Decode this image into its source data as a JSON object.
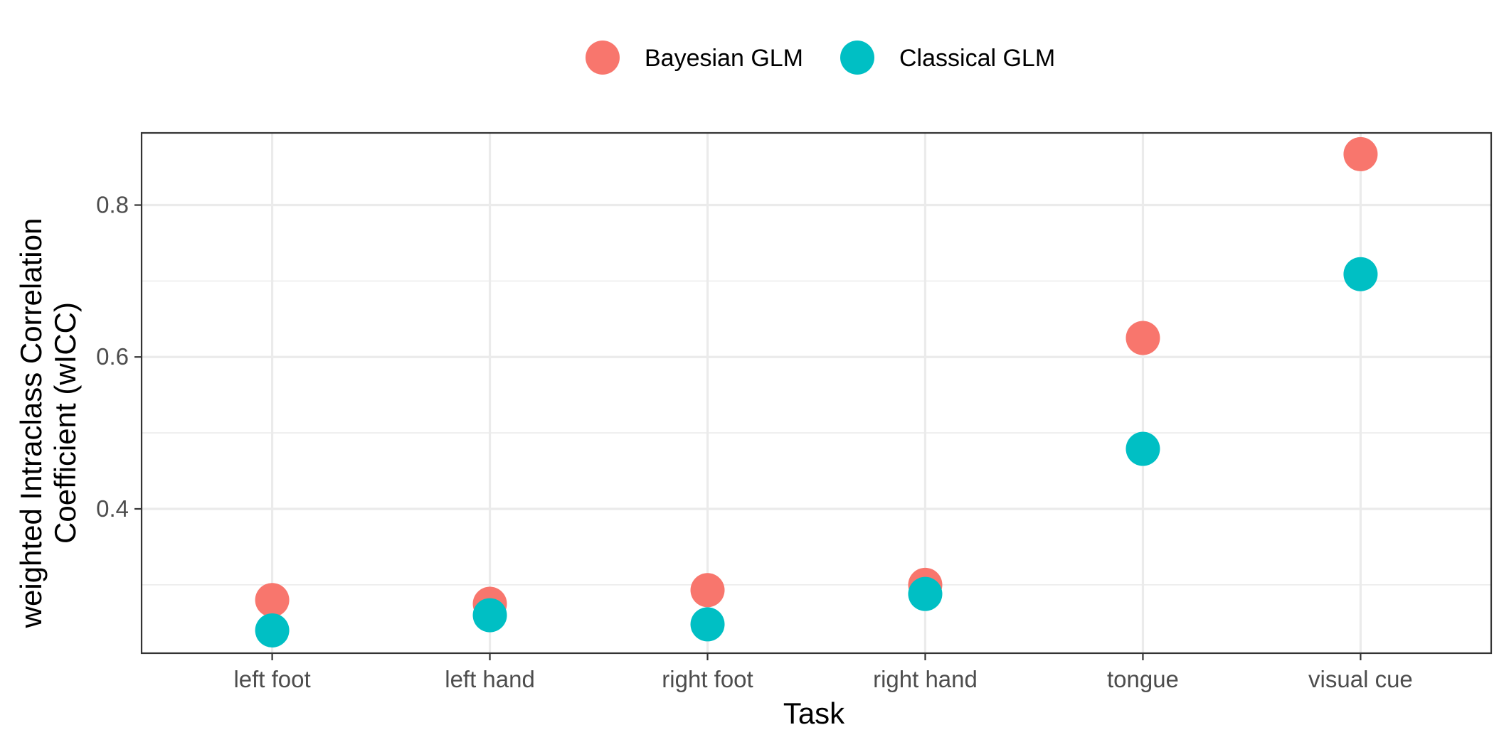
{
  "chart_data": {
    "type": "scatter",
    "title": "",
    "xlabel": "Task",
    "ylabel_lines": [
      "weighted Intraclass Correlation",
      "Coefficient (wICC)"
    ],
    "categories": [
      "left foot",
      "left hand",
      "right foot",
      "right hand",
      "tongue",
      "visual cue"
    ],
    "ylim": [
      0.21,
      0.895
    ],
    "y_ticks": [
      0.4,
      0.6,
      0.8
    ],
    "y_tick_labels": [
      "0.4",
      "0.6",
      "0.8"
    ],
    "y_minor_ticks": [
      0.3,
      0.5,
      0.7
    ],
    "grid": true,
    "legend_position": "top",
    "series": [
      {
        "name": "Bayesian GLM",
        "color": "#F8766D",
        "values": [
          0.28,
          0.275,
          0.293,
          0.3,
          0.625,
          0.867
        ]
      },
      {
        "name": "Classical GLM",
        "color": "#00BFC4",
        "values": [
          0.24,
          0.26,
          0.248,
          0.288,
          0.479,
          0.709
        ]
      }
    ]
  }
}
